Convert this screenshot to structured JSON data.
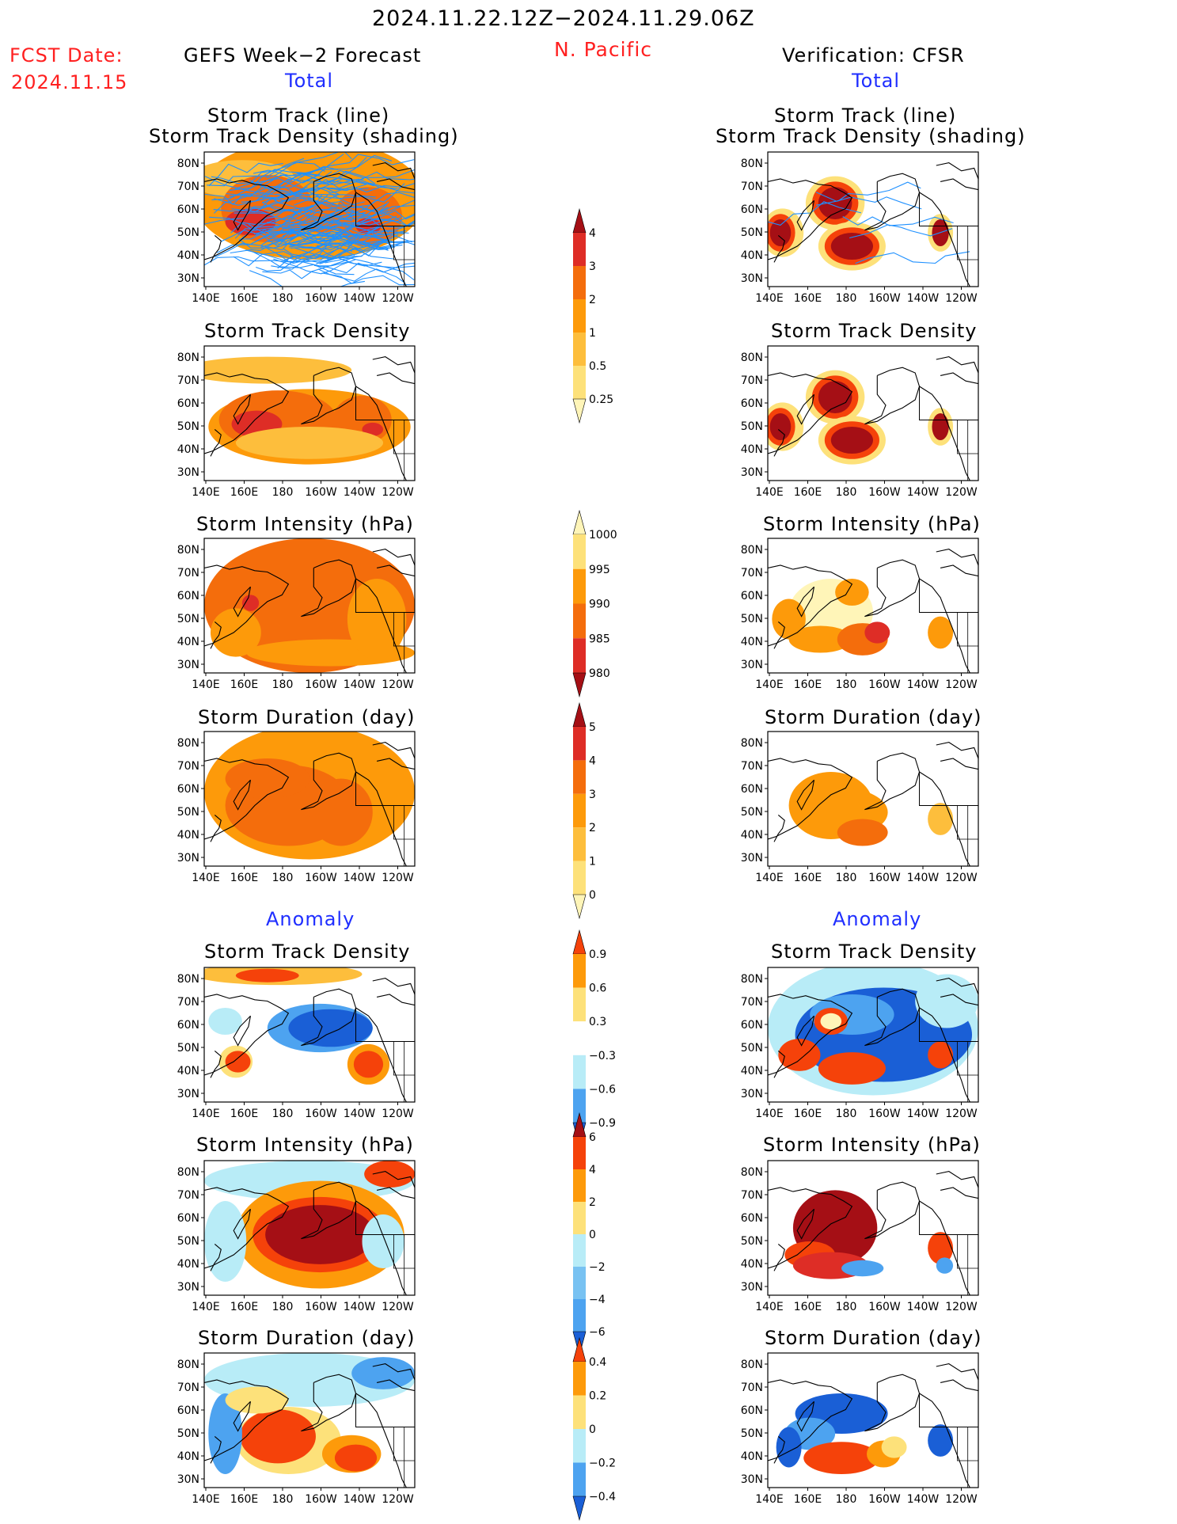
{
  "header": {
    "period": "2024.11.22.12Z−2024.11.29.06Z",
    "region": "N. Pacific",
    "fcst_label": "FCST Date:",
    "fcst_date": "2024.11.15",
    "left_title": "GEFS Week−2 Forecast",
    "right_title": "Verification: CFSR",
    "total_label": "Total",
    "anomaly_label": "Anomaly"
  },
  "panel_titles": {
    "track_line": "Storm Track (line)",
    "track_shading": "Storm Track Density (shading)",
    "density": "Storm Track Density",
    "intensity": "Storm Intensity (hPa)",
    "duration": "Storm Duration (day)"
  },
  "axes": {
    "lat_labels": [
      "80N",
      "70N",
      "60N",
      "50N",
      "40N",
      "30N"
    ],
    "lon_labels": [
      "140E",
      "160E",
      "180",
      "160W",
      "140W",
      "120W"
    ]
  },
  "colorbars": [
    {
      "name": "density",
      "labels": [
        "4",
        "3",
        "2",
        "1",
        "0.5",
        "0.25"
      ],
      "colors": [
        "#a50f15",
        "#de2d26",
        "#f46d0c",
        "#fd9a0a",
        "#fdbe3c",
        "#fde17a",
        "#fff5b8"
      ]
    },
    {
      "name": "intensity",
      "labels": [
        "1000",
        "995",
        "990",
        "985",
        "980"
      ],
      "colors": [
        "#fff5b8",
        "#fde17a",
        "#fd9a0a",
        "#f46d0c",
        "#de2d26",
        "#a50f15"
      ]
    },
    {
      "name": "duration",
      "labels": [
        "5",
        "4",
        "3",
        "2",
        "1",
        "0"
      ],
      "colors": [
        "#a50f15",
        "#de2d26",
        "#f46d0c",
        "#fd9a0a",
        "#fdbe3c",
        "#fde17a",
        "#fff5b8"
      ]
    },
    {
      "name": "density-anomaly",
      "labels": [
        "0.9",
        "0.6",
        "0.3",
        "−0.3",
        "−0.6",
        "−0.9"
      ],
      "colors": [
        "#f5420a",
        "#fd9a0a",
        "#fde17a",
        "#ffffff",
        "#b8ecf7",
        "#4da3f0",
        "#1a5fd6"
      ]
    },
    {
      "name": "intensity-anomaly",
      "labels": [
        "6",
        "4",
        "2",
        "0",
        "−2",
        "−4",
        "−6"
      ],
      "colors": [
        "#a50f15",
        "#f5420a",
        "#fd9a0a",
        "#fde17a",
        "#b8ecf7",
        "#78c2f2",
        "#4da3f0",
        "#1a5fd6"
      ]
    },
    {
      "name": "duration-anomaly",
      "labels": [
        "0.4",
        "0.2",
        "0",
        "−0.2",
        "−0.4"
      ],
      "colors": [
        "#f5420a",
        "#fd9a0a",
        "#fde17a",
        "#b8ecf7",
        "#4da3f0",
        "#1a5fd6"
      ]
    }
  ],
  "palette": {
    "title_red": "#ff2020",
    "title_blue": "#1f2eff",
    "track_line_blue": "#1e90ff"
  }
}
